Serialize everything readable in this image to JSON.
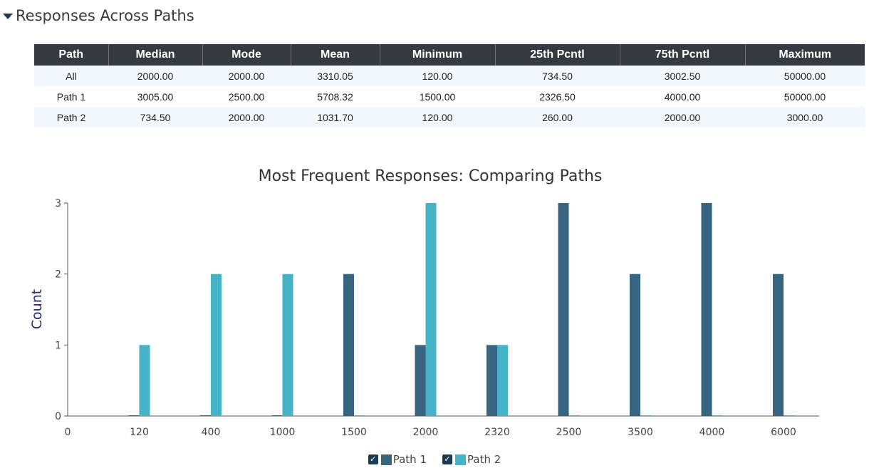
{
  "section": {
    "title": "Responses Across Paths"
  },
  "table": {
    "headers": [
      "Path",
      "Median",
      "Mode",
      "Mean",
      "Minimum",
      "25th Pcntl",
      "75th Pcntl",
      "Maximum"
    ],
    "rows": [
      [
        "All",
        "2000.00",
        "2000.00",
        "3310.05",
        "120.00",
        "734.50",
        "3002.50",
        "50000.00"
      ],
      [
        "Path 1",
        "3005.00",
        "2500.00",
        "5708.32",
        "1500.00",
        "2326.50",
        "4000.00",
        "50000.00"
      ],
      [
        "Path 2",
        "734.50",
        "2000.00",
        "1031.70",
        "120.00",
        "260.00",
        "2000.00",
        "3000.00"
      ]
    ]
  },
  "colors": {
    "path1": "#376580",
    "path2": "#45b3c5",
    "axis": "#555555",
    "header_bg": "#343a40"
  },
  "chart_data": {
    "type": "bar",
    "title": "Most Frequent Responses: Comparing Paths",
    "xlabel": "",
    "ylabel": "Count",
    "categories": [
      "0",
      "120",
      "400",
      "1000",
      "1500",
      "2000",
      "2320",
      "2500",
      "3500",
      "4000",
      "6000"
    ],
    "series": [
      {
        "name": "Path 1",
        "values": [
          null,
          0,
          0,
          0,
          2,
          1,
          1,
          3,
          2,
          3,
          2
        ]
      },
      {
        "name": "Path 2",
        "values": [
          null,
          1,
          2,
          2,
          0,
          3,
          1,
          0,
          0,
          0,
          0
        ]
      }
    ],
    "yticks": [
      0,
      1,
      2,
      3
    ],
    "ylim": [
      0,
      3
    ],
    "grid": false,
    "legend": "bottom-center"
  },
  "legend": {
    "items": [
      {
        "label": "Path 1",
        "checked": true,
        "check_glyph": "✓"
      },
      {
        "label": "Path 2",
        "checked": true,
        "check_glyph": "✓"
      }
    ]
  }
}
